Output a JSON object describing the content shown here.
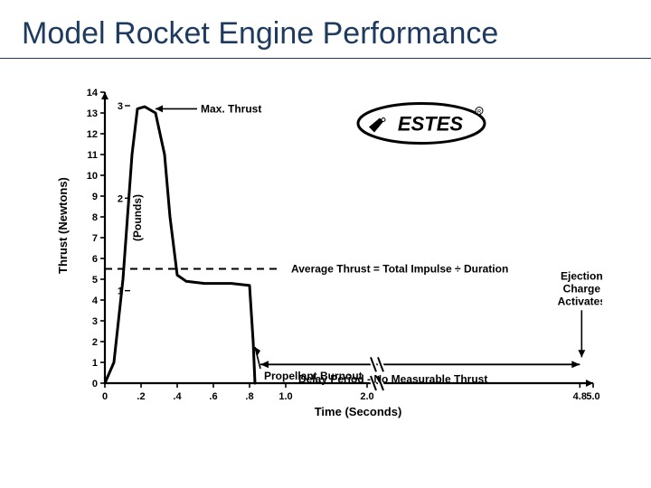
{
  "title": "Model Rocket Engine Performance",
  "brand": {
    "name": "ESTES"
  },
  "chart": {
    "type": "line",
    "background_color": "#ffffff",
    "line_color": "#000000",
    "line_width": 3,
    "x": {
      "label": "Time (Seconds)",
      "min": 0,
      "max": 5.0,
      "ticks": [
        {
          "v": 0,
          "l": "0"
        },
        {
          "v": 0.2,
          "l": ".2"
        },
        {
          "v": 0.4,
          "l": ".4"
        },
        {
          "v": 0.6,
          "l": ".6"
        },
        {
          "v": 0.8,
          "l": ".8"
        },
        {
          "v": 1.0,
          "l": "1.0"
        },
        {
          "v": 2.0,
          "l": "2.0"
        },
        {
          "v": 4.8,
          "l": "4.8"
        },
        {
          "v": 5.0,
          "l": "5.0"
        }
      ],
      "break_at": 2.5
    },
    "y_newtons": {
      "label": "Thrust (Newtons)",
      "min": 0,
      "max": 14,
      "ticks": [
        0,
        1,
        2,
        3,
        4,
        5,
        6,
        7,
        8,
        9,
        10,
        11,
        12,
        13,
        14
      ]
    },
    "y_pounds": {
      "label": "(Pounds)",
      "ticks": [
        1,
        2,
        3
      ],
      "positions_newtons": [
        4.45,
        8.9,
        13.35
      ]
    },
    "curve": [
      {
        "t": 0,
        "f": 0
      },
      {
        "t": 0.05,
        "f": 1
      },
      {
        "t": 0.1,
        "f": 5
      },
      {
        "t": 0.15,
        "f": 11
      },
      {
        "t": 0.18,
        "f": 13.2
      },
      {
        "t": 0.22,
        "f": 13.3
      },
      {
        "t": 0.28,
        "f": 13.0
      },
      {
        "t": 0.33,
        "f": 11
      },
      {
        "t": 0.36,
        "f": 8
      },
      {
        "t": 0.4,
        "f": 5.2
      },
      {
        "t": 0.45,
        "f": 4.9
      },
      {
        "t": 0.55,
        "f": 4.8
      },
      {
        "t": 0.7,
        "f": 4.8
      },
      {
        "t": 0.8,
        "f": 4.7
      },
      {
        "t": 0.82,
        "f": 2.0
      },
      {
        "t": 0.83,
        "f": 0
      }
    ],
    "avg_thrust": 5.5,
    "annotations": {
      "max_thrust": "Max. Thrust",
      "avg_thrust": "Average Thrust = Total Impulse ÷ Duration",
      "burnout": "Propellant Burnout",
      "delay": "Delay Period - No Measurable Thrust",
      "ejection": "Ejection\nCharge\nActivates"
    }
  }
}
